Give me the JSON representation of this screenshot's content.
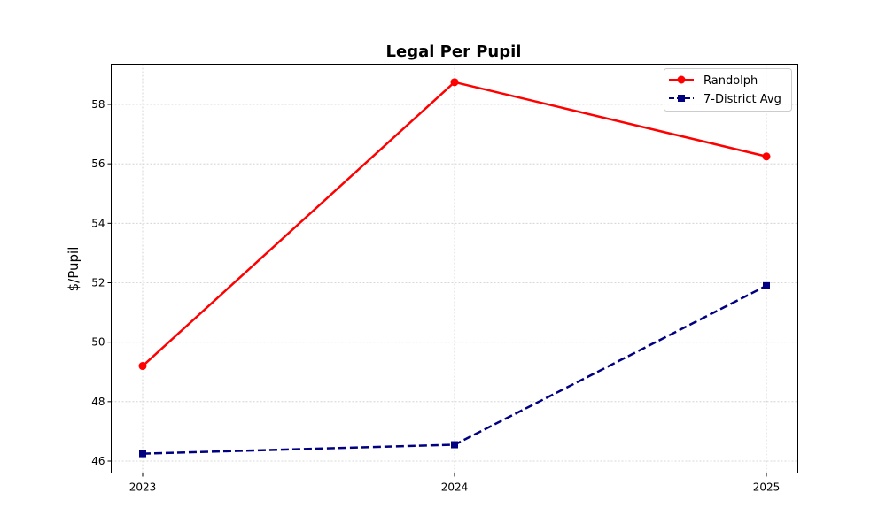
{
  "chart_data": {
    "type": "line",
    "title": "Legal Per Pupil",
    "xlabel": "",
    "ylabel": "$/Pupil",
    "categories": [
      "2023",
      "2024",
      "2025"
    ],
    "series": [
      {
        "name": "Randolph",
        "values": [
          49.2,
          58.75,
          56.25
        ],
        "color": "#ff0000",
        "linestyle": "solid",
        "marker": "circle"
      },
      {
        "name": "7-District Avg",
        "values": [
          46.25,
          46.55,
          51.9
        ],
        "color": "#000080",
        "linestyle": "dashed",
        "marker": "square"
      }
    ],
    "ylim": [
      45.7,
      59.4
    ],
    "yticks": [
      "46",
      "48",
      "50",
      "52",
      "54",
      "56",
      "58"
    ],
    "grid": true,
    "legend_position": "upper right"
  }
}
